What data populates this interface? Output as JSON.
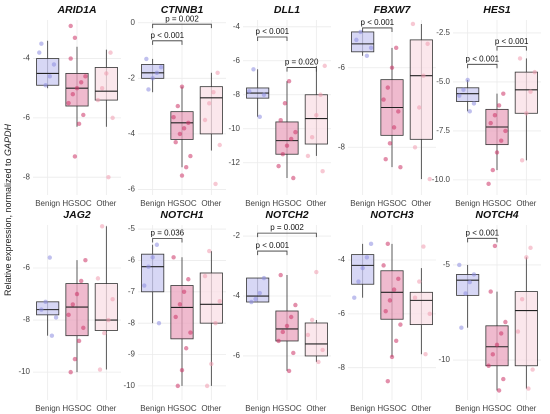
{
  "y_label": {
    "text": "Relative expression, normalized to",
    "gene": "GAPDH"
  },
  "chart_data": [
    {
      "type": "box",
      "title": "ARID1A",
      "categories": [
        "Benign",
        "HGSOC",
        "Other"
      ],
      "ylim": [
        -8.6,
        -2.7
      ],
      "yticks": [
        -4,
        -6,
        -8
      ],
      "grid": true,
      "colors": [
        "#c9c9f2",
        "#e9a3bd",
        "#f9dfe6"
      ],
      "point_colors": [
        "#8c8ce0",
        "#cc3366",
        "#f09aae"
      ],
      "boxes": [
        {
          "min": -5.0,
          "q1": -4.9,
          "median": -4.5,
          "q3": -4.0,
          "max": -3.4
        },
        {
          "min": -6.3,
          "q1": -5.6,
          "median": -5.0,
          "q3": -4.5,
          "max": -3.6
        },
        {
          "min": -6.3,
          "q1": -5.4,
          "median": -5.1,
          "q3": -4.3,
          "max": -3.7
        }
      ],
      "points": [
        [
          -3.8,
          -4.2,
          -4.6,
          -4.9,
          -3.5
        ],
        [
          -3.3,
          -4.0,
          -4.6,
          -4.8,
          -5.0,
          -5.2,
          -5.5,
          -5.9,
          -6.2,
          -7.3,
          -2.9
        ],
        [
          -3.8,
          -4.5,
          -5.0,
          -5.4,
          -6.0,
          -8.0
        ]
      ],
      "brackets": []
    },
    {
      "type": "box",
      "title": "CTNNB1",
      "categories": [
        "Benign",
        "HGSOC",
        "Other"
      ],
      "ylim": [
        -6.2,
        0.1
      ],
      "yticks": [
        0,
        -2,
        -4,
        -6
      ],
      "grid": true,
      "colors": [
        "#c9c9f2",
        "#e9a3bd",
        "#f9dfe6"
      ],
      "point_colors": [
        "#8c8ce0",
        "#cc3366",
        "#f09aae"
      ],
      "boxes": [
        {
          "min": -2.5,
          "q1": -2.0,
          "median": -1.8,
          "q3": -1.5,
          "max": -1.3
        },
        {
          "min": -5.2,
          "q1": -4.2,
          "median": -3.6,
          "q3": -3.2,
          "max": -2.3
        },
        {
          "min": -4.6,
          "q1": -4.0,
          "median": -2.7,
          "q3": -2.3,
          "max": -1.8
        }
      ],
      "points": [
        [
          -1.3,
          -1.6,
          -1.8,
          -2.0,
          -2.4
        ],
        [
          -2.3,
          -3.0,
          -3.4,
          -3.6,
          -3.8,
          -4.0,
          -4.3,
          -4.8,
          -5.2,
          -5.5
        ],
        [
          -1.8,
          -2.5,
          -2.9,
          -3.5,
          -4.4,
          -5.8
        ]
      ],
      "brackets": [
        {
          "pair": [
            "Benign",
            "Other"
          ],
          "y": -0.05,
          "label": "p = 0.002"
        },
        {
          "pair": [
            "Benign",
            "HGSOC"
          ],
          "y": -0.65,
          "label": "p < 0.001"
        }
      ]
    },
    {
      "type": "box",
      "title": "DLL1",
      "categories": [
        "Benign",
        "HGSOC",
        "Other"
      ],
      "ylim": [
        -13.9,
        -3.6
      ],
      "yticks": [
        -4,
        -6,
        -8,
        -10,
        -12
      ],
      "grid": true,
      "colors": [
        "#c9c9f2",
        "#e9a3bd",
        "#f9dfe6"
      ],
      "point_colors": [
        "#8c8ce0",
        "#cc3366",
        "#f09aae"
      ],
      "boxes": [
        {
          "min": -9.3,
          "q1": -8.2,
          "median": -7.9,
          "q3": -7.6,
          "max": -6.5
        },
        {
          "min": -12.9,
          "q1": -11.5,
          "median": -10.7,
          "q3": -9.6,
          "max": -7.2
        },
        {
          "min": -11.6,
          "q1": -10.9,
          "median": -9.4,
          "q3": -8.0,
          "max": -6.3
        }
      ],
      "points": [
        [
          -6.5,
          -7.8,
          -8.0,
          -9.3
        ],
        [
          -7.2,
          -8.5,
          -9.5,
          -10.2,
          -10.6,
          -11.0,
          -11.5,
          -12.2,
          -12.9
        ],
        [
          -6.3,
          -8.0,
          -9.2,
          -10.5,
          -11.6,
          -12.5
        ]
      ],
      "brackets": [
        {
          "pair": [
            "Benign",
            "HGSOC"
          ],
          "y": -4.6,
          "label": "p < 0.001"
        },
        {
          "pair": [
            "HGSOC",
            "Other"
          ],
          "y": -6.4,
          "label": "p = 0.020"
        }
      ]
    },
    {
      "type": "box",
      "title": "FBXW7",
      "categories": [
        "Benign",
        "HGSOC",
        "Other"
      ],
      "ylim": [
        -9.2,
        -4.8
      ],
      "yticks": [
        -6,
        -8
      ],
      "grid": true,
      "colors": [
        "#c9c9f2",
        "#e9a3bd",
        "#f9dfe6"
      ],
      "point_colors": [
        "#8c8ce0",
        "#cc3366",
        "#f09aae"
      ],
      "boxes": [
        {
          "min": -5.7,
          "q1": -5.6,
          "median": -5.4,
          "q3": -5.1,
          "max": -5.1
        },
        {
          "min": -8.5,
          "q1": -7.7,
          "median": -7.0,
          "q3": -6.3,
          "max": -5.5
        },
        {
          "min": -8.8,
          "q1": -7.8,
          "median": -6.2,
          "q3": -5.3,
          "max": -4.9
        }
      ],
      "points": [
        [
          -5.1,
          -5.3,
          -5.5,
          -5.7
        ],
        [
          -5.5,
          -6.0,
          -6.5,
          -6.8,
          -7.1,
          -7.5,
          -7.9,
          -8.3,
          -8.5
        ],
        [
          -4.9,
          -5.4,
          -6.2,
          -7.0,
          -8.0,
          -8.8
        ]
      ],
      "brackets": [
        {
          "pair": [
            "Benign",
            "HGSOC"
          ],
          "y": -5.0,
          "label": "p < 0.001"
        }
      ]
    },
    {
      "type": "box",
      "title": "HES1",
      "categories": [
        "Benign",
        "HGSOC",
        "Other"
      ],
      "ylim": [
        -10.77,
        -1.84
      ],
      "yticks": [
        -2.5,
        {
          "value": -5,
          "label": "-5.0"
        },
        -7.5,
        {
          "value": -10,
          "label": "-10.0"
        }
      ],
      "grid": true,
      "colors": [
        "#c9c9f2",
        "#e9a3bd",
        "#f9dfe6"
      ],
      "point_colors": [
        "#8c8ce0",
        "#cc3366",
        "#f09aae"
      ],
      "boxes": [
        {
          "min": -6.5,
          "q1": -6.0,
          "median": -5.6,
          "q3": -5.3,
          "max": -4.9
        },
        {
          "min": -9.5,
          "q1": -8.2,
          "median": -7.3,
          "q3": -6.4,
          "max": -5.6
        },
        {
          "min": -9.0,
          "q1": -6.6,
          "median": -5.4,
          "q3": -4.5,
          "max": -3.8
        }
      ],
      "points": [
        [
          -4.9,
          -5.4,
          -5.7,
          -6.1,
          -6.5
        ],
        [
          -5.6,
          -6.2,
          -6.7,
          -7.1,
          -7.5,
          -8.0,
          -8.6,
          -9.5,
          -10.2
        ],
        [
          -3.8,
          -4.5,
          -5.5,
          -6.6,
          -9.0
        ]
      ],
      "brackets": [
        {
          "pair": [
            "Benign",
            "HGSOC"
          ],
          "y": -4.1,
          "label": "p < 0.001"
        },
        {
          "pair": [
            "HGSOC",
            "Other"
          ],
          "y": -3.2,
          "label": "p < 0.001"
        }
      ]
    },
    {
      "type": "box",
      "title": "JAG2",
      "categories": [
        "Benign",
        "HGSOC",
        "Other"
      ],
      "ylim": [
        -11.07,
        -4.35
      ],
      "yticks": [
        -6,
        -8,
        -10
      ],
      "grid": true,
      "colors": [
        "#c9c9f2",
        "#e9a3bd",
        "#f9dfe6"
      ],
      "point_colors": [
        "#8c8ce0",
        "#cc3366",
        "#f09aae"
      ],
      "boxes": [
        {
          "min": -8.6,
          "q1": -7.8,
          "median": -7.6,
          "q3": -7.3,
          "max": -7.3
        },
        {
          "min": -10.0,
          "q1": -8.6,
          "median": -7.5,
          "q3": -6.6,
          "max": -5.7
        },
        {
          "min": -9.9,
          "q1": -8.4,
          "median": -8.0,
          "q3": -6.6,
          "max": -4.4
        }
      ],
      "points": [
        [
          -5.6,
          -7.3,
          -7.6,
          -7.9,
          -8.6
        ],
        [
          -5.7,
          -6.5,
          -7.0,
          -7.4,
          -7.8,
          -8.3,
          -8.8,
          -9.5,
          -10.0
        ],
        [
          -4.4,
          -6.4,
          -7.2,
          -8.0,
          -8.5,
          -9.9
        ]
      ],
      "brackets": []
    },
    {
      "type": "box",
      "title": "NOTCH1",
      "categories": [
        "Benign",
        "HGSOC",
        "Other"
      ],
      "ylim": [
        -10.45,
        -4.87
      ],
      "yticks": [
        -5,
        -6,
        -7,
        -8,
        -9,
        -10
      ],
      "grid": true,
      "colors": [
        "#c9c9f2",
        "#e9a3bd",
        "#f9dfe6"
      ],
      "point_colors": [
        "#8c8ce0",
        "#cc3366",
        "#f09aae"
      ],
      "boxes": [
        {
          "min": -8.0,
          "q1": -7.0,
          "median": -6.2,
          "q3": -5.8,
          "max": -5.5
        },
        {
          "min": -10.0,
          "q1": -8.5,
          "median": -7.5,
          "q3": -6.8,
          "max": -5.9
        },
        {
          "min": -10.0,
          "q1": -8.0,
          "median": -7.4,
          "q3": -6.4,
          "max": -5.7
        }
      ],
      "points": [
        [
          -5.5,
          -5.9,
          -6.2,
          -6.8,
          -8.0
        ],
        [
          -5.9,
          -6.6,
          -7.0,
          -7.4,
          -7.8,
          -8.3,
          -8.8,
          -9.5,
          -10.0
        ],
        [
          -5.7,
          -6.5,
          -7.3,
          -8.0,
          -9.3,
          -10.0
        ]
      ],
      "brackets": [
        {
          "pair": [
            "Benign",
            "HGSOC"
          ],
          "y": -5.3,
          "label": "p = 0.036"
        }
      ]
    },
    {
      "type": "box",
      "title": "NOTCH2",
      "categories": [
        "Benign",
        "HGSOC",
        "Other"
      ],
      "ylim": [
        -7.47,
        -1.63
      ],
      "yticks": [
        -2,
        -4,
        -6
      ],
      "grid": true,
      "colors": [
        "#c9c9f2",
        "#e9a3bd",
        "#f9dfe6"
      ],
      "point_colors": [
        "#8c8ce0",
        "#cc3366",
        "#f09aae"
      ],
      "boxes": [
        {
          "min": -4.2,
          "q1": -4.2,
          "median": -4.0,
          "q3": -3.4,
          "max": -3.4
        },
        {
          "min": -6.5,
          "q1": -5.5,
          "median": -5.1,
          "q3": -4.5,
          "max": -3.3
        },
        {
          "min": -6.2,
          "q1": -6.0,
          "median": -5.6,
          "q3": -4.9,
          "max": -4.8
        }
      ],
      "points": [
        [
          -3.4,
          -3.9,
          -4.1,
          -4.2
        ],
        [
          -3.3,
          -4.3,
          -4.7,
          -5.0,
          -5.2,
          -5.5,
          -5.9,
          -6.5
        ],
        [
          -3.2,
          -4.8,
          -5.3,
          -5.8,
          -6.2
        ]
      ],
      "brackets": [
        {
          "pair": [
            "Benign",
            "Other"
          ],
          "y": -1.9,
          "label": "p = 0.002"
        },
        {
          "pair": [
            "Benign",
            "HGSOC"
          ],
          "y": -2.5,
          "label": "p < 0.001"
        }
      ]
    },
    {
      "type": "box",
      "title": "NOTCH3",
      "categories": [
        "Benign",
        "HGSOC",
        "Other"
      ],
      "ylim": [
        -9.2,
        -2.7
      ],
      "yticks": [
        -4,
        -6,
        -8
      ],
      "grid": true,
      "colors": [
        "#c9c9f2",
        "#e9a3bd",
        "#f9dfe6"
      ],
      "point_colors": [
        "#8c8ce0",
        "#cc3366",
        "#f09aae"
      ],
      "boxes": [
        {
          "min": -5.4,
          "q1": -4.9,
          "median": -4.2,
          "q3": -3.8,
          "max": -3.4
        },
        {
          "min": -7.6,
          "q1": -6.2,
          "median": -5.2,
          "q3": -4.4,
          "max": -3.4
        },
        {
          "min": -7.5,
          "q1": -6.4,
          "median": -5.5,
          "q3": -5.2,
          "max": -4.3
        }
      ],
      "points": [
        [
          -3.4,
          -3.9,
          -4.3,
          -4.8,
          -5.4
        ],
        [
          -3.4,
          -4.2,
          -4.7,
          -5.1,
          -5.5,
          -5.9,
          -6.4,
          -7.0,
          -7.6,
          -8.5
        ],
        [
          -3.5,
          -4.8,
          -5.4,
          -6.0,
          -7.5
        ]
      ],
      "brackets": []
    },
    {
      "type": "box",
      "title": "NOTCH4",
      "categories": [
        "Benign",
        "HGSOC",
        "Other"
      ],
      "ylim": [
        -12.1,
        -2.9
      ],
      "yticks": [
        -5,
        -10
      ],
      "grid": true,
      "colors": [
        "#c9c9f2",
        "#e9a3bd",
        "#f9dfe6"
      ],
      "point_colors": [
        "#8c8ce0",
        "#cc3366",
        "#f09aae"
      ],
      "boxes": [
        {
          "min": -8.3,
          "q1": -6.6,
          "median": -5.8,
          "q3": -5.5,
          "max": -5.0
        },
        {
          "min": -11.6,
          "q1": -10.3,
          "median": -9.3,
          "q3": -8.2,
          "max": -6.4
        },
        {
          "min": -11.5,
          "q1": -10.3,
          "median": -7.4,
          "q3": -6.4,
          "max": -4.6
        }
      ],
      "points": [
        [
          -5.0,
          -5.5,
          -5.9,
          -6.5,
          -8.3
        ],
        [
          -4.0,
          -6.4,
          -8.0,
          -8.6,
          -9.2,
          -9.7,
          -10.3,
          -11.0,
          -11.6
        ],
        [
          -4.1,
          -4.6,
          -6.8,
          -8.5,
          -10.5,
          -11.5
        ]
      ],
      "brackets": [
        {
          "pair": [
            "Benign",
            "HGSOC"
          ],
          "y": -3.6,
          "label": "p < 0.001"
        }
      ]
    }
  ]
}
